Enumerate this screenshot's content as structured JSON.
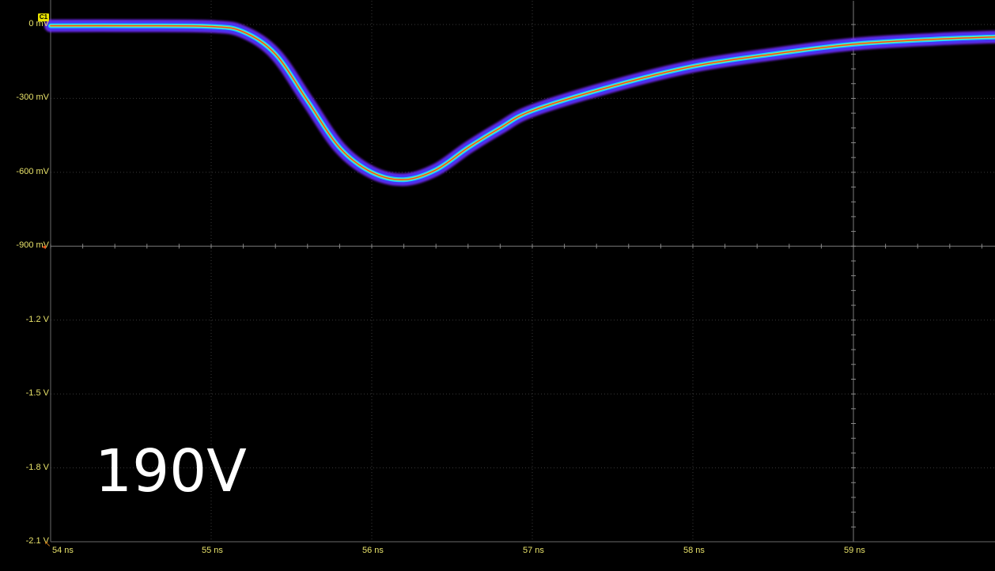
{
  "channel_badge": "C1",
  "overlay_label": "190V",
  "colors": {
    "background": "#000000",
    "grid": "#3a3a3a",
    "axis_label": "#e8e26a",
    "channel_badge": "#e8e200",
    "persistence_outer": "#7a2cff",
    "persistence_mid": "#1fd6ff",
    "persistence_core": "#ff3a1a"
  },
  "chart_data": {
    "type": "line",
    "title": "",
    "xlabel": "",
    "ylabel": "",
    "display": "color-graded persistence waveform",
    "grid": true,
    "xlim": [
      54,
      59.9
    ],
    "ylim": [
      -2.1,
      0
    ],
    "x_ticks": [
      "54 ns",
      "55 ns",
      "56 ns",
      "57 ns",
      "58 ns",
      "59 ns"
    ],
    "y_ticks": [
      "0 mV",
      "-300 mV",
      "-600 mV",
      "-900 mV",
      "-1.2 V",
      "-1.5 V",
      "-1.8 V",
      "-2.1 V"
    ],
    "series": [
      {
        "x_ns": [
          54.0,
          54.5,
          55.0,
          55.2,
          55.4,
          55.6,
          55.8,
          56.0,
          56.2,
          56.4,
          56.6,
          56.8,
          57.0,
          57.5,
          58.0,
          58.5,
          59.0,
          59.5,
          59.9
        ],
        "y_V": [
          -0.005,
          -0.005,
          -0.008,
          -0.03,
          -0.12,
          -0.31,
          -0.5,
          -0.6,
          -0.63,
          -0.59,
          -0.5,
          -0.42,
          -0.35,
          -0.25,
          -0.17,
          -0.12,
          -0.08,
          -0.06,
          -0.05
        ]
      }
    ]
  }
}
